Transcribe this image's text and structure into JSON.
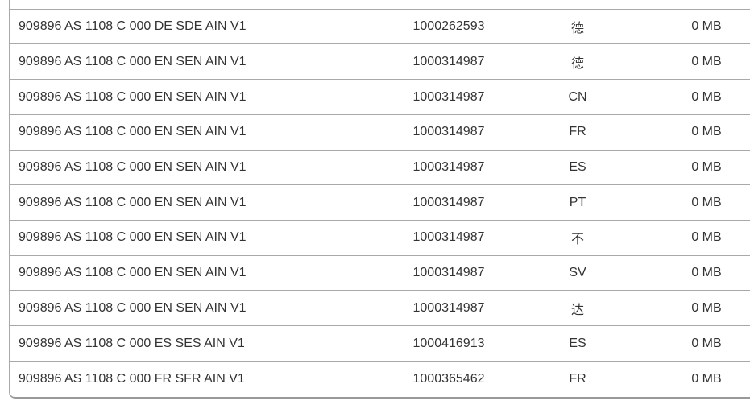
{
  "colors": {
    "row_divider": "#a9a9a9",
    "container_border": "#999999",
    "text": "#333333",
    "background": "#ffffff"
  },
  "table": {
    "rows": [
      {
        "name": "909896 AS 1108 C 000 DE SDE AIN V1",
        "number": "1000262593",
        "language": "德",
        "size": "0 MB"
      },
      {
        "name": "909896 AS 1108 C 000 EN SEN AIN V1",
        "number": "1000314987",
        "language": "德",
        "size": "0 MB"
      },
      {
        "name": "909896 AS 1108 C 000 EN SEN AIN V1",
        "number": "1000314987",
        "language": "CN",
        "size": "0 MB"
      },
      {
        "name": "909896 AS 1108 C 000 EN SEN AIN V1",
        "number": "1000314987",
        "language": "FR",
        "size": "0 MB"
      },
      {
        "name": "909896 AS 1108 C 000 EN SEN AIN V1",
        "number": "1000314987",
        "language": "ES",
        "size": "0 MB"
      },
      {
        "name": "909896 AS 1108 C 000 EN SEN AIN V1",
        "number": "1000314987",
        "language": "PT",
        "size": "0 MB"
      },
      {
        "name": "909896 AS 1108 C 000 EN SEN AIN V1",
        "number": "1000314987",
        "language": "不",
        "size": "0 MB"
      },
      {
        "name": "909896 AS 1108 C 000 EN SEN AIN V1",
        "number": "1000314987",
        "language": "SV",
        "size": "0 MB"
      },
      {
        "name": "909896 AS 1108 C 000 EN SEN AIN V1",
        "number": "1000314987",
        "language": "达",
        "size": "0 MB"
      },
      {
        "name": "909896 AS 1108 C 000 ES SES AIN V1",
        "number": "1000416913",
        "language": "ES",
        "size": "0 MB"
      },
      {
        "name": "909896 AS 1108 C 000 FR SFR AIN V1",
        "number": "1000365462",
        "language": "FR",
        "size": "0 MB"
      }
    ]
  }
}
